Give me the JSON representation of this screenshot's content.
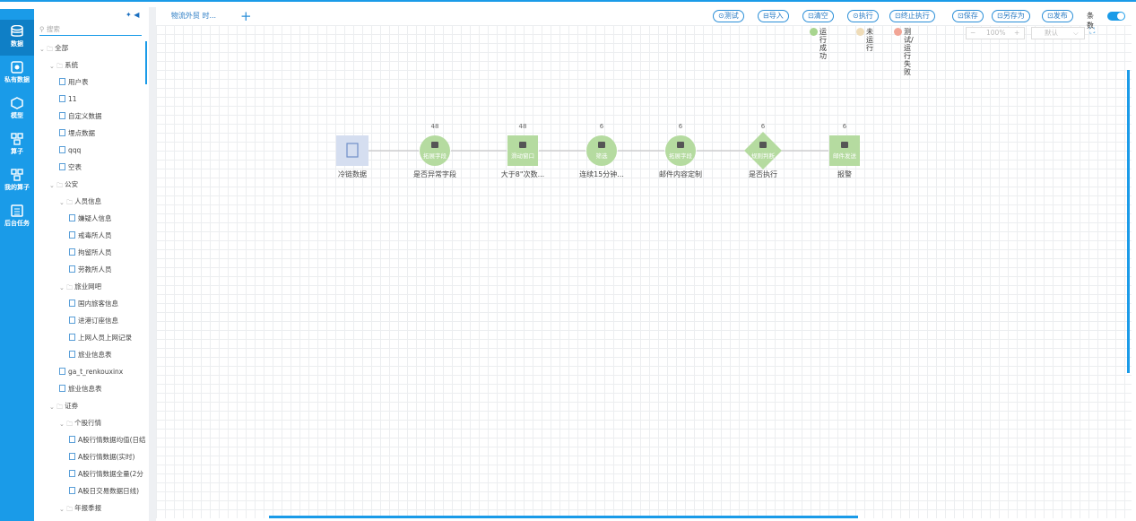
{
  "sidebar": {
    "items": [
      "数据",
      "私有数据",
      "模型",
      "算子",
      "我的算子",
      "后台任务"
    ]
  },
  "tree": {
    "search_placeholder": "搜索",
    "items": [
      {
        "label": "全部",
        "level": 0,
        "kind": "folder"
      },
      {
        "label": "系统",
        "level": 1,
        "kind": "folder"
      },
      {
        "label": "用户表",
        "level": 2,
        "kind": "file"
      },
      {
        "label": "11",
        "level": 2,
        "kind": "file"
      },
      {
        "label": "自定义数据",
        "level": 2,
        "kind": "file"
      },
      {
        "label": "埋点数据",
        "level": 2,
        "kind": "file"
      },
      {
        "label": "qqq",
        "level": 2,
        "kind": "file"
      },
      {
        "label": "空表",
        "level": 2,
        "kind": "file"
      },
      {
        "label": "公安",
        "level": 1,
        "kind": "folder"
      },
      {
        "label": "人员信息",
        "level": 2,
        "kind": "folder"
      },
      {
        "label": "嫌疑人信息",
        "level": 3,
        "kind": "file"
      },
      {
        "label": "戒毒所人员",
        "level": 3,
        "kind": "file"
      },
      {
        "label": "拘留所人员",
        "level": 3,
        "kind": "file"
      },
      {
        "label": "劳教所人员",
        "level": 3,
        "kind": "file"
      },
      {
        "label": "旅业网吧",
        "level": 2,
        "kind": "folder"
      },
      {
        "label": "国内旅客信息",
        "level": 3,
        "kind": "file"
      },
      {
        "label": "进港订座信息",
        "level": 3,
        "kind": "file"
      },
      {
        "label": "上网人员上网记录",
        "level": 3,
        "kind": "file"
      },
      {
        "label": "旅业信息表",
        "level": 3,
        "kind": "file"
      },
      {
        "label": "ga_t_renkouxinx",
        "level": 2,
        "kind": "file"
      },
      {
        "label": "旅业信息表",
        "level": 2,
        "kind": "file"
      },
      {
        "label": "证券",
        "level": 1,
        "kind": "folder"
      },
      {
        "label": "个股行情",
        "level": 2,
        "kind": "folder"
      },
      {
        "label": "A股行情数据均值(日结",
        "level": 3,
        "kind": "file"
      },
      {
        "label": "A股行情数据(实时)",
        "level": 3,
        "kind": "file"
      },
      {
        "label": "A股行情数据全量(2分",
        "level": 3,
        "kind": "file"
      },
      {
        "label": "A股日交易数据日线)",
        "level": 3,
        "kind": "file"
      },
      {
        "label": "年报季报",
        "level": 2,
        "kind": "folder"
      }
    ]
  },
  "tab": {
    "title": "物流外贸 时...",
    "add": "+"
  },
  "toolbar": {
    "buttons": [
      "⊙测试",
      "⊟导入",
      "⊡清空",
      "⊙执行",
      "⊡终止执行",
      "⊡保存",
      "⊡另存为",
      "⊡发布"
    ],
    "toggle_label": "条数"
  },
  "legend": {
    "items": [
      {
        "label": "运行成功",
        "color": "#a8d58f"
      },
      {
        "label": "未运行",
        "color": "#efdcb8"
      },
      {
        "label": "测试/运行失败",
        "color": "#f2a596"
      }
    ]
  },
  "zoom": {
    "minus": "−",
    "value": "100%",
    "plus": "+",
    "layout": "默认"
  },
  "nodes": [
    {
      "label": "冷链数据",
      "shape": "doc"
    },
    {
      "count": "48",
      "inner": "拓展字段",
      "label": "是否异常字段",
      "shape": "circle"
    },
    {
      "count": "48",
      "inner": "滑动窗口",
      "label": "大于8\"次数...",
      "shape": "square"
    },
    {
      "count": "6",
      "inner": "筛选",
      "label": "连续15分钟...",
      "shape": "circle"
    },
    {
      "count": "6",
      "inner": "拓展字段",
      "label": "邮件内容定制",
      "shape": "circle"
    },
    {
      "count": "6",
      "inner": "规则判断",
      "label": "是否执行",
      "shape": "diamond"
    },
    {
      "count": "6",
      "inner": "邮件发送",
      "label": "报警",
      "shape": "square"
    }
  ]
}
